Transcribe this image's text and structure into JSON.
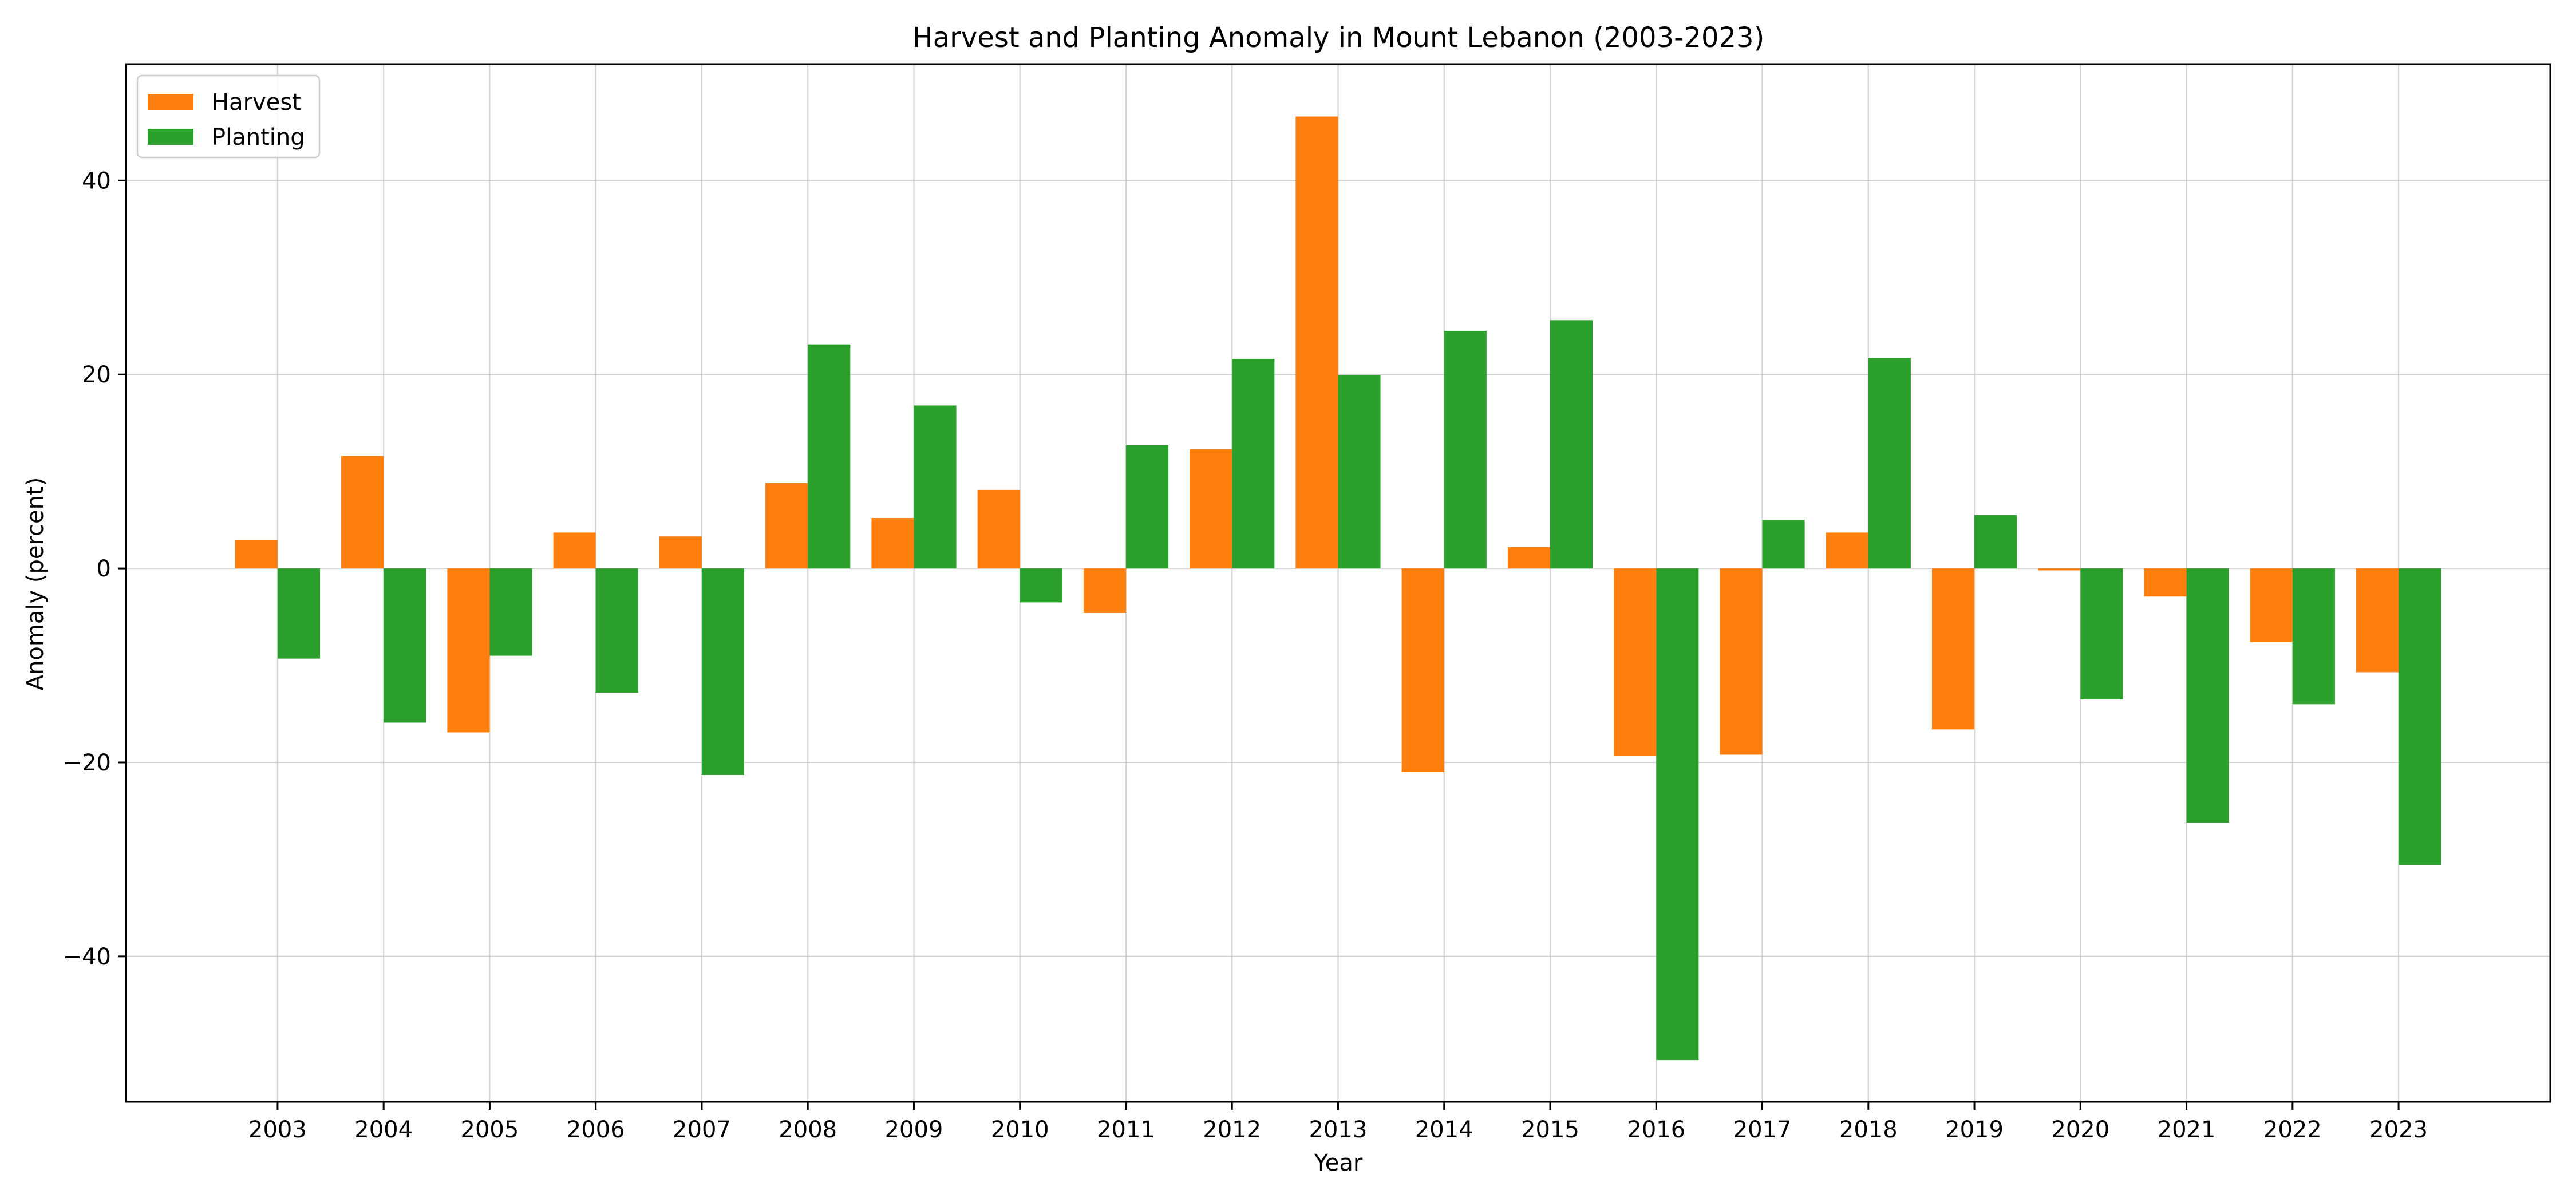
{
  "chart_data": {
    "type": "bar",
    "title": "Harvest and Planting Anomaly in Mount Lebanon (2003-2023)",
    "xlabel": "Year",
    "ylabel": "Anomaly (percent)",
    "ylim": [
      -55,
      52
    ],
    "yticks": [
      -40,
      -20,
      0,
      20,
      40
    ],
    "ytick_labels": [
      "−40",
      "−20",
      "0",
      "20",
      "40"
    ],
    "grid": true,
    "legend_position": "top-left",
    "categories": [
      "2003",
      "2004",
      "2005",
      "2006",
      "2007",
      "2008",
      "2009",
      "2010",
      "2011",
      "2012",
      "2013",
      "2014",
      "2015",
      "2016",
      "2017",
      "2018",
      "2019",
      "2020",
      "2021",
      "2022",
      "2023"
    ],
    "series": [
      {
        "name": "Harvest",
        "color": "#ff7f0e",
        "values": [
          2.9,
          11.6,
          -16.9,
          3.7,
          3.3,
          8.8,
          5.2,
          8.1,
          -4.6,
          12.3,
          46.6,
          -21.0,
          2.2,
          -19.3,
          -19.2,
          3.7,
          -16.6,
          -0.2,
          -2.9,
          -7.6,
          -10.7
        ]
      },
      {
        "name": "Planting",
        "color": "#2ca02c",
        "values": [
          -9.3,
          -15.9,
          -9.0,
          -12.8,
          -21.3,
          23.1,
          16.8,
          -3.5,
          12.7,
          21.6,
          19.9,
          24.5,
          25.6,
          -50.7,
          5.0,
          21.7,
          5.5,
          -13.5,
          -26.2,
          -14.0,
          -30.6
        ]
      }
    ]
  }
}
